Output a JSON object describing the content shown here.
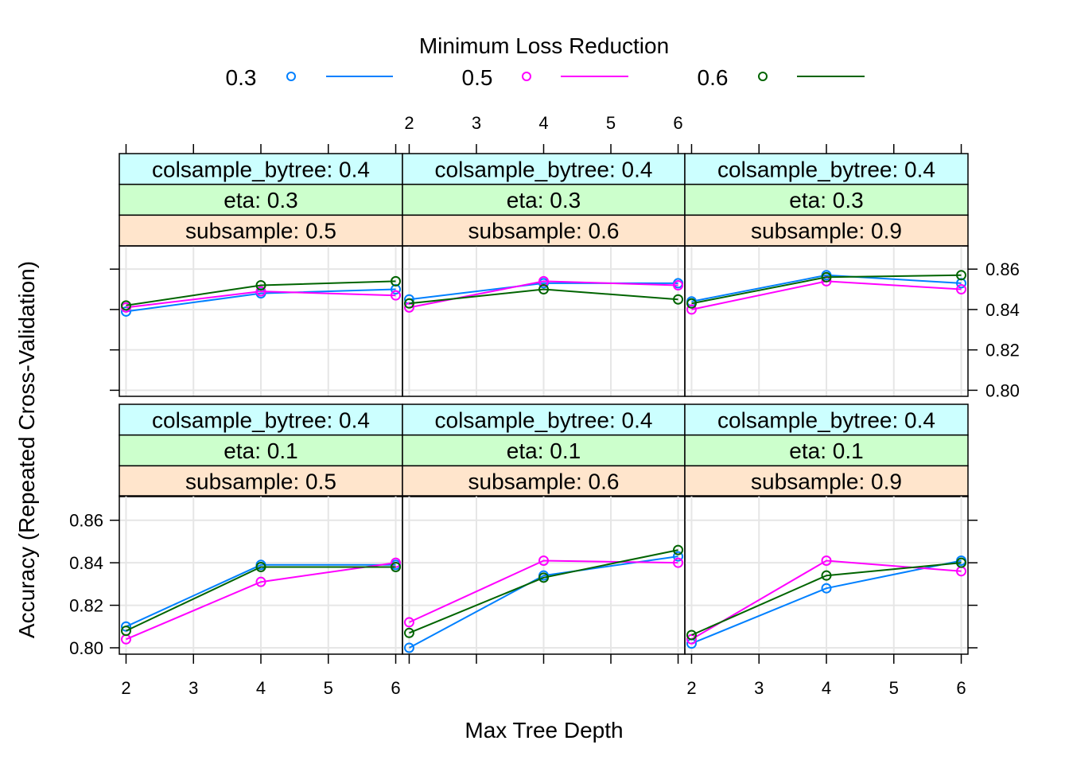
{
  "chart_data": {
    "type": "line",
    "xlabel": "Max Tree Depth",
    "ylabel": "Accuracy (Repeated Cross-Validation)",
    "xlim": [
      1.9,
      6.1
    ],
    "ylim": [
      0.797,
      0.8715
    ],
    "x_ticks": [
      2,
      3,
      4,
      5,
      6
    ],
    "x_tick_labels": [
      "2",
      "3",
      "4",
      "5",
      "6"
    ],
    "y_ticks": [
      0.8,
      0.82,
      0.84,
      0.86
    ],
    "y_tick_labels": [
      "0.80",
      "0.82",
      "0.84",
      "0.86"
    ],
    "grid": true,
    "legend": {
      "title": "Minimum Loss Reduction",
      "position": "top",
      "entries": [
        {
          "label": "0.3",
          "color": "#0080ff"
        },
        {
          "label": "0.5",
          "color": "#ff00ff"
        },
        {
          "label": "0.6",
          "color": "#006400"
        }
      ]
    },
    "strip_colors": [
      "#ccffff",
      "#ccffcc",
      "#ffe5cc"
    ],
    "panels": [
      {
        "row": 0,
        "col": 0,
        "strips": [
          "colsample_bytree: 0.4",
          "eta: 0.3",
          "subsample: 0.5"
        ],
        "series": [
          {
            "name": "0.3",
            "x": [
              2,
              4,
              6
            ],
            "y": [
              0.839,
              0.848,
              0.85
            ]
          },
          {
            "name": "0.5",
            "x": [
              2,
              4,
              6
            ],
            "y": [
              0.841,
              0.849,
              0.847
            ]
          },
          {
            "name": "0.6",
            "x": [
              2,
              4,
              6
            ],
            "y": [
              0.842,
              0.852,
              0.854
            ]
          }
        ]
      },
      {
        "row": 0,
        "col": 1,
        "strips": [
          "colsample_bytree: 0.4",
          "eta: 0.3",
          "subsample: 0.6"
        ],
        "series": [
          {
            "name": "0.3",
            "x": [
              2,
              4,
              6
            ],
            "y": [
              0.845,
              0.853,
              0.853
            ]
          },
          {
            "name": "0.5",
            "x": [
              2,
              4,
              6
            ],
            "y": [
              0.841,
              0.854,
              0.852
            ]
          },
          {
            "name": "0.6",
            "x": [
              2,
              4,
              6
            ],
            "y": [
              0.843,
              0.85,
              0.845
            ]
          }
        ]
      },
      {
        "row": 0,
        "col": 2,
        "strips": [
          "colsample_bytree: 0.4",
          "eta: 0.3",
          "subsample: 0.9"
        ],
        "series": [
          {
            "name": "0.3",
            "x": [
              2,
              4,
              6
            ],
            "y": [
              0.844,
              0.857,
              0.853
            ]
          },
          {
            "name": "0.5",
            "x": [
              2,
              4,
              6
            ],
            "y": [
              0.84,
              0.854,
              0.85
            ]
          },
          {
            "name": "0.6",
            "x": [
              2,
              4,
              6
            ],
            "y": [
              0.843,
              0.856,
              0.857
            ]
          }
        ]
      },
      {
        "row": 1,
        "col": 0,
        "strips": [
          "colsample_bytree: 0.4",
          "eta: 0.1",
          "subsample: 0.5"
        ],
        "series": [
          {
            "name": "0.3",
            "x": [
              2,
              4,
              6
            ],
            "y": [
              0.81,
              0.839,
              0.839
            ]
          },
          {
            "name": "0.5",
            "x": [
              2,
              4,
              6
            ],
            "y": [
              0.804,
              0.831,
              0.84
            ]
          },
          {
            "name": "0.6",
            "x": [
              2,
              4,
              6
            ],
            "y": [
              0.808,
              0.838,
              0.838
            ]
          }
        ]
      },
      {
        "row": 1,
        "col": 1,
        "strips": [
          "colsample_bytree: 0.4",
          "eta: 0.1",
          "subsample: 0.6"
        ],
        "series": [
          {
            "name": "0.3",
            "x": [
              2,
              4,
              6
            ],
            "y": [
              0.8,
              0.834,
              0.843
            ]
          },
          {
            "name": "0.5",
            "x": [
              2,
              4,
              6
            ],
            "y": [
              0.812,
              0.841,
              0.84
            ]
          },
          {
            "name": "0.6",
            "x": [
              2,
              4,
              6
            ],
            "y": [
              0.807,
              0.833,
              0.846
            ]
          }
        ]
      },
      {
        "row": 1,
        "col": 2,
        "strips": [
          "colsample_bytree: 0.4",
          "eta: 0.1",
          "subsample: 0.9"
        ],
        "series": [
          {
            "name": "0.3",
            "x": [
              2,
              4,
              6
            ],
            "y": [
              0.802,
              0.828,
              0.841
            ]
          },
          {
            "name": "0.5",
            "x": [
              2,
              4,
              6
            ],
            "y": [
              0.804,
              0.841,
              0.836
            ]
          },
          {
            "name": "0.6",
            "x": [
              2,
              4,
              6
            ],
            "y": [
              0.806,
              0.834,
              0.84
            ]
          }
        ]
      }
    ]
  }
}
